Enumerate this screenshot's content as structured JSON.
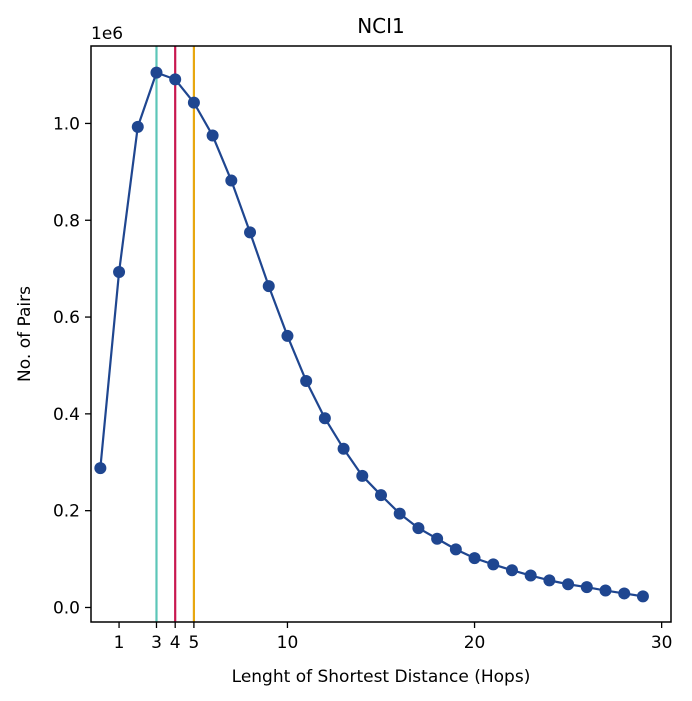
{
  "chart_data": {
    "type": "line",
    "title": "NCI1",
    "xlabel": "Lenght of Shortest Distance (Hops)",
    "ylabel": "No. of Pairs",
    "y_offset_label": "1e6",
    "xlim": [
      -0.5,
      30.5
    ],
    "ylim": [
      -0.03,
      1.16
    ],
    "x_ticks": [
      1,
      3,
      4,
      5,
      10,
      20,
      30
    ],
    "x_tick_labels": [
      "1",
      "3",
      "4",
      "5",
      "10",
      "20",
      "30"
    ],
    "y_ticks": [
      0.0,
      0.2,
      0.4,
      0.6,
      0.8,
      1.0
    ],
    "y_tick_labels": [
      "0.0",
      "0.2",
      "0.4",
      "0.6",
      "0.8",
      "1.0"
    ],
    "grid": false,
    "series": [
      {
        "color": "#1f4690",
        "x": [
          0,
          1,
          2,
          3,
          4,
          5,
          6,
          7,
          8,
          9,
          10,
          11,
          12,
          13,
          14,
          15,
          16,
          17,
          18,
          19,
          20,
          21,
          22,
          23,
          24,
          25,
          26,
          27,
          28,
          29
        ],
        "y": [
          0.288,
          0.693,
          0.993,
          1.105,
          1.091,
          1.043,
          0.975,
          0.882,
          0.775,
          0.664,
          0.561,
          0.468,
          0.391,
          0.328,
          0.272,
          0.232,
          0.194,
          0.164,
          0.142,
          0.12,
          0.102,
          0.089,
          0.077,
          0.066,
          0.056,
          0.048,
          0.042,
          0.035,
          0.029,
          0.023
        ]
      }
    ],
    "vlines": [
      {
        "x": 3,
        "color": "#5cc6b8"
      },
      {
        "x": 4,
        "color": "#c8174f"
      },
      {
        "x": 5,
        "color": "#e8a70f"
      }
    ]
  }
}
